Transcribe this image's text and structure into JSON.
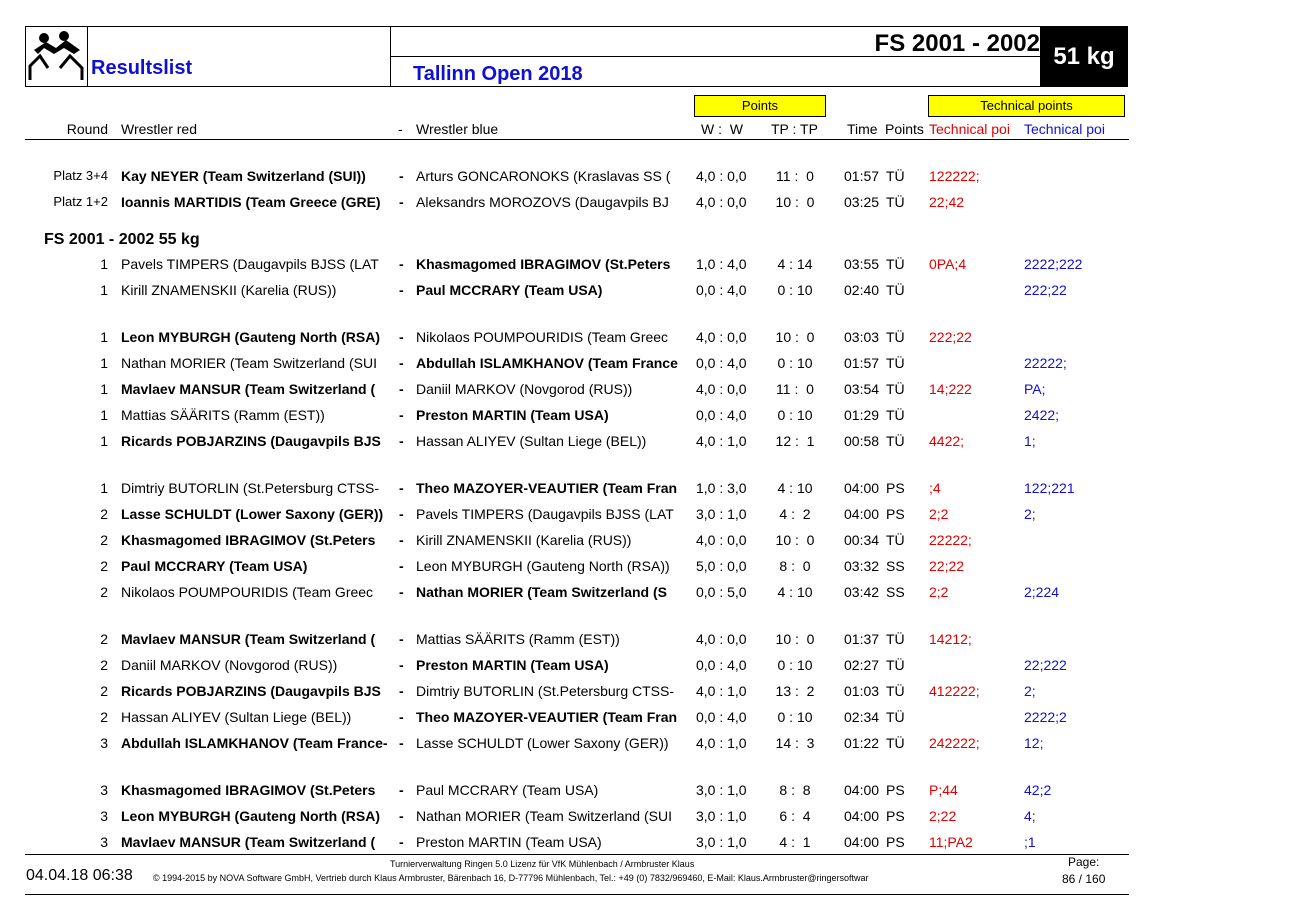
{
  "header": {
    "title": "Resultslist",
    "competition": "FS 2001 - 2002",
    "weight": "51 kg",
    "event": "Tallinn Open 2018",
    "points_label": "Points",
    "tech_label": "Technical points",
    "columns": {
      "round": "Round",
      "red": "Wrestler red",
      "sep": "-",
      "blue": "Wrestler blue",
      "wins": "W :  W",
      "tp": "TP : TP",
      "time": "Time",
      "points": "Points",
      "tech_red": "Technical poi",
      "tech_blue": "Technical poi"
    }
  },
  "separator": "-",
  "sections": [
    {
      "groups": [
        [
          {
            "round": "Platz 3+4",
            "red": "Kay NEYER (Team Switzerland (SUI))",
            "blue": "Arturs GONCARONOKS (Kraslavas SS (",
            "winner": "red",
            "wins": "4,0 : 0,0",
            "tp": "11 :  0",
            "time": "01:57",
            "pts": "TÜ",
            "tech_red": "122222;"
          },
          {
            "round": "Platz 1+2",
            "red": "Ioannis MARTIDIS (Team Greece (GRE)",
            "blue": "Aleksandrs MOROZOVS (Daugavpils BJ",
            "winner": "red",
            "wins": "4,0 : 0,0",
            "tp": "10 :  0",
            "time": "03:25",
            "pts": "TÜ",
            "tech_red": "22;42"
          }
        ]
      ]
    },
    {
      "title": "FS 2001 - 2002 55 kg",
      "groups": [
        [
          {
            "round": "1",
            "red": "Pavels TIMPERS (Daugavpils BJSS (LAT",
            "blue": "Khasmagomed IBRAGIMOV (St.Peters",
            "winner": "blue",
            "wins": "1,0 : 4,0",
            "tp": "4 : 14",
            "time": "03:55",
            "pts": "TÜ",
            "tech_red": "0PA;4",
            "tech_blue": "2222;222"
          },
          {
            "round": "1",
            "red": "Kirill ZNAMENSKII (Karelia (RUS))",
            "blue": "Paul MCCRARY (Team USA)",
            "winner": "blue",
            "wins": "0,0 : 4,0",
            "tp": "0 : 10",
            "time": "02:40",
            "pts": "TÜ",
            "tech_blue": "222;22"
          }
        ],
        [
          {
            "round": "1",
            "red": "Leon MYBURGH (Gauteng North (RSA)",
            "blue": "Nikolaos POUMPOURIDIS (Team Greec",
            "winner": "red",
            "wins": "4,0 : 0,0",
            "tp": "10 :  0",
            "time": "03:03",
            "pts": "TÜ",
            "tech_red": "222;22"
          },
          {
            "round": "1",
            "red": "Nathan MORIER (Team Switzerland (SUI",
            "blue": "Abdullah ISLAMKHANOV (Team France",
            "winner": "blue",
            "wins": "0,0 : 4,0",
            "tp": "0 : 10",
            "time": "01:57",
            "pts": "TÜ",
            "tech_blue": "22222;"
          },
          {
            "round": "1",
            "red": "Mavlaev MANSUR (Team Switzerland (",
            "blue": "Daniil MARKOV (Novgorod (RUS))",
            "winner": "red",
            "wins": "4,0 : 0,0",
            "tp": "11 :  0",
            "time": "03:54",
            "pts": "TÜ",
            "tech_red": "14;222",
            "tech_blue": "PA;"
          },
          {
            "round": "1",
            "red": "Mattias SÄÄRITS (Ramm (EST))",
            "blue": "Preston MARTIN (Team USA)",
            "winner": "blue",
            "wins": "0,0 : 4,0",
            "tp": "0 : 10",
            "time": "01:29",
            "pts": "TÜ",
            "tech_blue": "2422;"
          },
          {
            "round": "1",
            "red": "Ricards POBJARZINS (Daugavpils BJS",
            "blue": "Hassan ALIYEV (Sultan Liege (BEL))",
            "winner": "red",
            "wins": "4,0 : 1,0",
            "tp": "12 :  1",
            "time": "00:58",
            "pts": "TÜ",
            "tech_red": "4422;",
            "tech_blue": "1;"
          }
        ],
        [
          {
            "round": "1",
            "red": "Dimtriy BUTORLIN (St.Petersburg CTSS-",
            "blue": "Theo MAZOYER-VEAUTIER (Team Fran",
            "winner": "blue",
            "wins": "1,0 : 3,0",
            "tp": "4 : 10",
            "time": "04:00",
            "pts": "PS",
            "tech_red": ";4",
            "tech_blue": "122;221"
          },
          {
            "round": "2",
            "red": "Lasse SCHULDT (Lower Saxony (GER))",
            "blue": "Pavels TIMPERS (Daugavpils BJSS (LAT",
            "winner": "red",
            "wins": "3,0 : 1,0",
            "tp": "4 :  2",
            "time": "04:00",
            "pts": "PS",
            "tech_red": "2;2",
            "tech_blue": "2;"
          },
          {
            "round": "2",
            "red": "Khasmagomed IBRAGIMOV (St.Peters",
            "blue": "Kirill ZNAMENSKII (Karelia (RUS))",
            "winner": "red",
            "wins": "4,0 : 0,0",
            "tp": "10 :  0",
            "time": "00:34",
            "pts": "TÜ",
            "tech_red": "22222;"
          },
          {
            "round": "2",
            "red": "Paul MCCRARY (Team USA)",
            "blue": "Leon MYBURGH (Gauteng North (RSA))",
            "winner": "red",
            "wins": "5,0 : 0,0",
            "tp": "8 :  0",
            "time": "03:32",
            "pts": "SS",
            "tech_red": "22;22"
          },
          {
            "round": "2",
            "red": "Nikolaos POUMPOURIDIS (Team Greec",
            "blue": "Nathan MORIER (Team Switzerland (S",
            "winner": "blue",
            "wins": "0,0 : 5,0",
            "tp": "4 : 10",
            "time": "03:42",
            "pts": "SS",
            "tech_red": "2;2",
            "tech_blue": "2;224"
          }
        ],
        [
          {
            "round": "2",
            "red": "Mavlaev MANSUR (Team Switzerland (",
            "blue": "Mattias SÄÄRITS (Ramm (EST))",
            "winner": "red",
            "wins": "4,0 : 0,0",
            "tp": "10 :  0",
            "time": "01:37",
            "pts": "TÜ",
            "tech_red": "14212;"
          },
          {
            "round": "2",
            "red": "Daniil MARKOV (Novgorod (RUS))",
            "blue": "Preston MARTIN (Team USA)",
            "winner": "blue",
            "wins": "0,0 : 4,0",
            "tp": "0 : 10",
            "time": "02:27",
            "pts": "TÜ",
            "tech_blue": "22;222"
          },
          {
            "round": "2",
            "red": "Ricards POBJARZINS (Daugavpils BJS",
            "blue": "Dimtriy BUTORLIN (St.Petersburg CTSS-",
            "winner": "red",
            "wins": "4,0 : 1,0",
            "tp": "13 :  2",
            "time": "01:03",
            "pts": "TÜ",
            "tech_red": "412222;",
            "tech_blue": "2;"
          },
          {
            "round": "2",
            "red": "Hassan ALIYEV (Sultan Liege (BEL))",
            "blue": "Theo MAZOYER-VEAUTIER (Team Fran",
            "winner": "blue",
            "wins": "0,0 : 4,0",
            "tp": "0 : 10",
            "time": "02:34",
            "pts": "TÜ",
            "tech_blue": "2222;2"
          },
          {
            "round": "3",
            "red": "Abdullah ISLAMKHANOV (Team France-",
            "blue": "Lasse SCHULDT (Lower Saxony (GER))",
            "winner": "red",
            "wins": "4,0 : 1,0",
            "tp": "14 :  3",
            "time": "01:22",
            "pts": "TÜ",
            "tech_red": "242222;",
            "tech_blue": "12;"
          }
        ],
        [
          {
            "round": "3",
            "red": "Khasmagomed IBRAGIMOV (St.Peters",
            "blue": "Paul MCCRARY (Team USA)",
            "winner": "red",
            "wins": "3,0 : 1,0",
            "tp": "8 :  8",
            "time": "04:00",
            "pts": "PS",
            "tech_red": "P;44",
            "tech_blue": "42;2"
          },
          {
            "round": "3",
            "red": "Leon MYBURGH (Gauteng North (RSA)",
            "blue": "Nathan MORIER (Team Switzerland (SUI",
            "winner": "red",
            "wins": "3,0 : 1,0",
            "tp": "6 :  4",
            "time": "04:00",
            "pts": "PS",
            "tech_red": "2;22",
            "tech_blue": "4;"
          },
          {
            "round": "3",
            "red": "Mavlaev MANSUR (Team Switzerland (",
            "blue": "Preston MARTIN (Team USA)",
            "winner": "red",
            "wins": "3,0 : 1,0",
            "tp": "4 :  1",
            "time": "04:00",
            "pts": "PS",
            "tech_red": "11;PA2",
            "tech_blue": ";1"
          }
        ]
      ]
    }
  ],
  "footer": {
    "date": "04.04.18 06:38",
    "license": "Turnierverwaltung Ringen 5.0 Lizenz für VfK Mühlenbach / Armbruster Klaus",
    "copyright": "© 1994-2015 by NOVA Software GmbH, Vertrieb durch Klaus Armbruster, Bärenbach 16, D-77796 Mühlenbach, Tel.: +49 (0) 7832/969460, E-Mail: Klaus.Armbruster@ringersoftwar",
    "page_label": "Page:",
    "page": "86 / 160"
  }
}
